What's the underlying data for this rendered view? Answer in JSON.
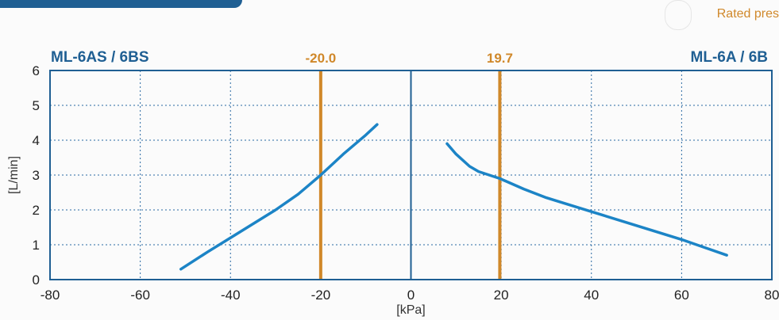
{
  "header": {
    "rated_label": "Rated pres",
    "left_model": "ML-6AS / 6BS",
    "right_model": "ML-6A / 6B"
  },
  "chart_data": {
    "type": "line",
    "xlabel": "[kPa]",
    "ylabel": "[L/min]",
    "xlim": [
      -80,
      80
    ],
    "ylim": [
      0,
      6
    ],
    "x_ticks": [
      -80,
      -60,
      -40,
      -20,
      0,
      20,
      40,
      60,
      80
    ],
    "x_tick_labels": [
      "-80",
      "-60",
      "-40",
      "-20",
      "0",
      "20",
      "40",
      "60",
      "80"
    ],
    "y_ticks": [
      0,
      1,
      2,
      3,
      4,
      5,
      6
    ],
    "y_tick_labels": [
      "0",
      "1",
      "2",
      "3",
      "4",
      "5",
      "6"
    ],
    "grid": true,
    "reference_lines": [
      {
        "x": -20.0,
        "label": "-20.0",
        "color": "#d0882a"
      },
      {
        "x": 19.7,
        "label": "19.7",
        "color": "#d0882a"
      }
    ],
    "series": [
      {
        "color": "#1c84c6",
        "points": [
          [
            -51,
            0.3
          ],
          [
            -45,
            0.8
          ],
          [
            -40,
            1.2
          ],
          [
            -35,
            1.6
          ],
          [
            -30,
            2.0
          ],
          [
            -25,
            2.45
          ],
          [
            -20,
            3.0
          ],
          [
            -15,
            3.6
          ],
          [
            -10,
            4.15
          ],
          [
            -7.5,
            4.45
          ]
        ]
      },
      {
        "color": "#1c84c6",
        "points": [
          [
            8,
            3.9
          ],
          [
            10,
            3.6
          ],
          [
            13,
            3.25
          ],
          [
            15,
            3.1
          ],
          [
            19.7,
            2.9
          ],
          [
            25,
            2.6
          ],
          [
            30,
            2.35
          ],
          [
            40,
            1.95
          ],
          [
            50,
            1.55
          ],
          [
            60,
            1.15
          ],
          [
            70,
            0.7
          ]
        ]
      }
    ]
  }
}
